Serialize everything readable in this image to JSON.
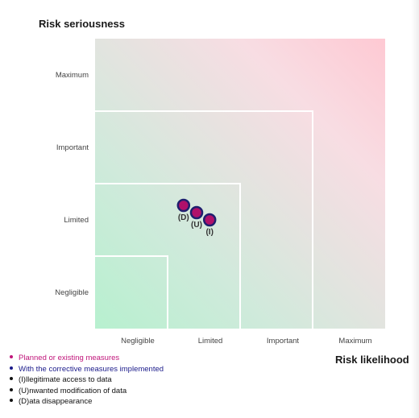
{
  "chart_data": {
    "type": "scatter",
    "ylabel": "Risk seriousness",
    "xlabel": "Risk likelihood",
    "x_categories": [
      "Negligible",
      "Limited",
      "Important",
      "Maximum"
    ],
    "y_categories": [
      "Negligible",
      "Limited",
      "Important",
      "Maximum"
    ],
    "xlim": [
      0,
      4
    ],
    "ylim": [
      0,
      4
    ],
    "zones": [
      1,
      2,
      3
    ],
    "points": [
      {
        "label": "(D)",
        "x": 1.22,
        "y": 1.7
      },
      {
        "label": "(U)",
        "x": 1.4,
        "y": 1.6
      },
      {
        "label": "(I)",
        "x": 1.58,
        "y": 1.5
      }
    ],
    "point_fill": "#b0106a",
    "point_stroke": "#1f1f6e"
  },
  "legend": {
    "planned": "Planned or existing measures",
    "corrective": "With the corrective measures implemented",
    "illegitimate": "(I)llegitimate access to data",
    "unwanted": "(U)nwanted modification of data",
    "disappearance": "(D)ata disappearance"
  },
  "colors": {
    "planned": "#c0157a",
    "corrective": "#1a1a8a",
    "bullet_plain": "#111111"
  }
}
